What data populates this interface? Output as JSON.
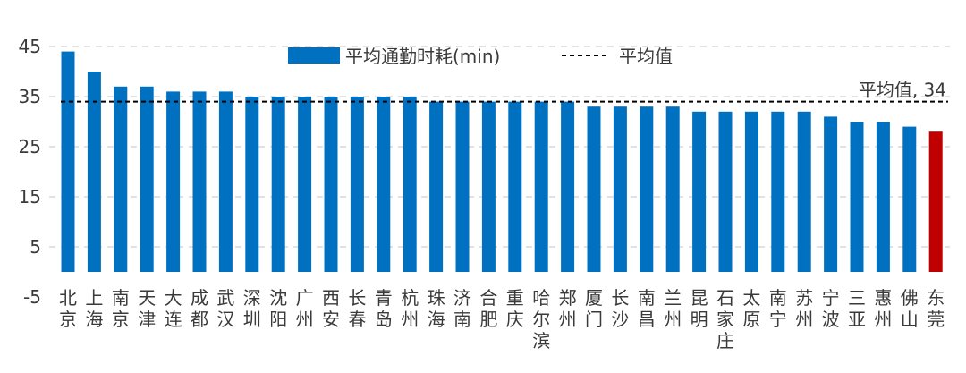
{
  "chart_data": {
    "type": "bar",
    "title": "",
    "xlabel": "",
    "ylabel": "",
    "ylim": [
      -5,
      45
    ],
    "yticks": [
      -5,
      5,
      15,
      25,
      35,
      45
    ],
    "grid": true,
    "legend_position": "top",
    "categories": [
      "北京",
      "上海",
      "南京",
      "天津",
      "大连",
      "成都",
      "武汉",
      "深圳",
      "沈阳",
      "广州",
      "西安",
      "长春",
      "青岛",
      "杭州",
      "珠海",
      "济南",
      "合肥",
      "重庆",
      "哈尔滨",
      "郑州",
      "厦门",
      "长沙",
      "南昌",
      "兰州",
      "昆明",
      "石家庄",
      "太原",
      "南宁",
      "苏州",
      "宁波",
      "三亚",
      "惠州",
      "佛山",
      "东莞"
    ],
    "series": [
      {
        "name": "平均通勤时耗(min)",
        "color": "#0070C0",
        "highlight_color": "#C00000",
        "highlight_index": 33,
        "values": [
          44,
          40,
          37,
          37,
          36,
          36,
          36,
          35,
          35,
          35,
          35,
          35,
          35,
          35,
          34,
          34,
          34,
          34,
          34,
          34,
          33,
          33,
          33,
          33,
          32,
          32,
          32,
          32,
          32,
          31,
          30,
          30,
          29,
          28
        ]
      }
    ],
    "reference_line": {
      "name": "平均值",
      "value": 34,
      "label": "平均值, 34",
      "color": "#000000"
    }
  }
}
